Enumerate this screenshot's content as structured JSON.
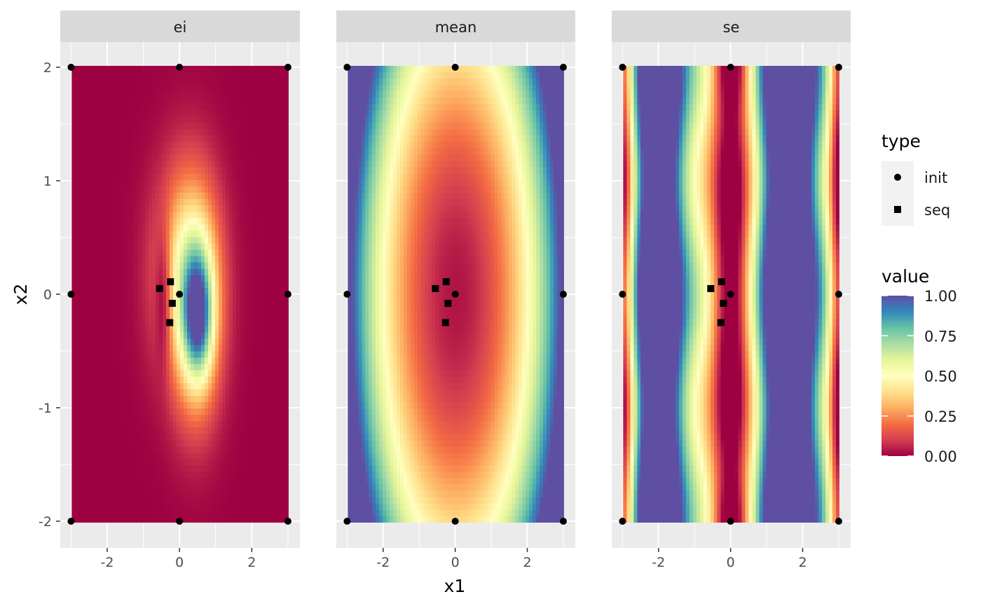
{
  "chart_data": {
    "type": "heatmap",
    "facets": [
      {
        "label": "ei"
      },
      {
        "label": "mean"
      },
      {
        "label": "se"
      }
    ],
    "xlabel": "x1",
    "ylabel": "x2",
    "xlim": [
      -3,
      3
    ],
    "ylim": [
      -2,
      2
    ],
    "x_ticks": [
      -2,
      0,
      2
    ],
    "y_ticks": [
      -2,
      -1,
      0,
      1,
      2
    ],
    "x_tick_labels": [
      "-2",
      "0",
      "2"
    ],
    "y_tick_labels": [
      "-2",
      "-1",
      "0",
      "1",
      "2"
    ],
    "grid": true,
    "points": {
      "init": [
        [
          -3,
          -2
        ],
        [
          -3,
          0
        ],
        [
          -3,
          2
        ],
        [
          0,
          -2
        ],
        [
          0,
          0
        ],
        [
          0,
          2
        ],
        [
          3,
          -2
        ],
        [
          3,
          0
        ],
        [
          3,
          2
        ]
      ],
      "seq": [
        [
          -0.55,
          0.05
        ],
        [
          -0.25,
          0.11
        ],
        [
          -0.2,
          -0.08
        ],
        [
          -0.27,
          -0.25
        ]
      ]
    },
    "legend_type": {
      "title": "type",
      "items": [
        {
          "label": "init",
          "shape": "circle"
        },
        {
          "label": "seq",
          "shape": "square"
        }
      ],
      "placement": "right"
    },
    "legend_value": {
      "title": "value",
      "breaks": [
        0,
        0.25,
        0.5,
        0.75,
        1.0
      ],
      "labels": [
        "0.00",
        "0.25",
        "0.50",
        "0.75",
        "1.00"
      ],
      "palette": "Spectral",
      "colors": [
        "#9e0142",
        "#d53e4f",
        "#f46d43",
        "#fdae61",
        "#fee08b",
        "#ffffbf",
        "#e6f598",
        "#abdda4",
        "#66c2a5",
        "#3288bd",
        "#5e4fa2"
      ],
      "placement": "right"
    }
  }
}
